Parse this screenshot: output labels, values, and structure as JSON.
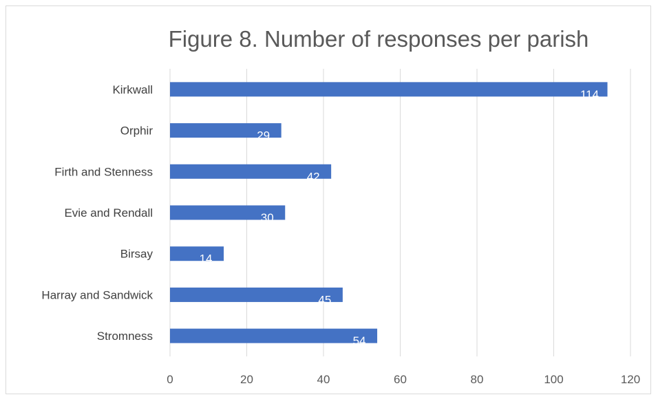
{
  "chart_data": {
    "type": "bar",
    "orientation": "horizontal",
    "title": "Figure 8. Number of responses per parish",
    "categories": [
      "Kirkwall",
      "Orphir",
      "Firth and Stenness",
      "Evie and Rendall",
      "Birsay",
      "Harray and Sandwick",
      "Stromness"
    ],
    "values": [
      114,
      29,
      42,
      30,
      14,
      45,
      54
    ],
    "xticks": [
      "0",
      "20",
      "40",
      "60",
      "80",
      "100",
      "120"
    ],
    "xlim": [
      0,
      120
    ],
    "xlabel": "",
    "ylabel": "",
    "grid": true,
    "data_labels": true,
    "legend": "none",
    "colors": {
      "bar": "#4472c4",
      "grid": "#d9d9d9",
      "axis_text": "#595959"
    }
  }
}
